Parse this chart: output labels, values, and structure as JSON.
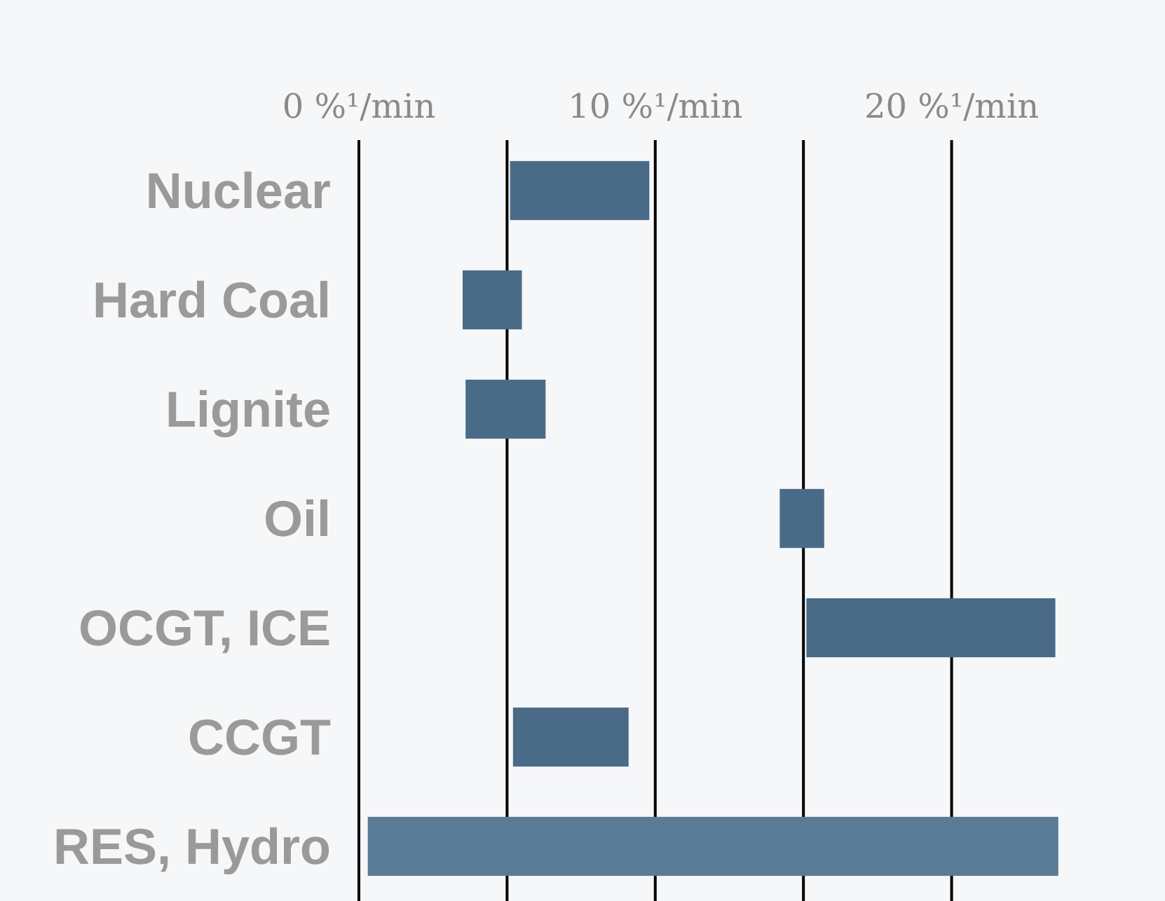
{
  "chart_data": {
    "type": "bar",
    "orientation": "horizontal",
    "categories": [
      "Nuclear",
      "Hard Coal",
      "Lignite",
      "Oil",
      "OCGT, ICE",
      "CCGT",
      "RES, Hydro"
    ],
    "base": [
      5.1,
      3.5,
      3.6,
      14.2,
      15.1,
      5.2,
      0.3
    ],
    "values": [
      4.7,
      2.0,
      2.7,
      1.5,
      8.4,
      3.9,
      23.3
    ],
    "colors": [
      "#4a6b88",
      "#4a6b88",
      "#4a6b88",
      "#4a6b88",
      "#4a6b88",
      "#4a6b88",
      "#5a7b96"
    ],
    "xlim": [
      0,
      27.2
    ],
    "xticks": [
      {
        "value": 0,
        "label": "0 %¹/min"
      },
      {
        "value": 5,
        "label": null
      },
      {
        "value": 10,
        "label": "10 %¹/min"
      },
      {
        "value": 15,
        "label": null
      },
      {
        "value": 20,
        "label": "20 %¹/min"
      }
    ],
    "grid": "x"
  }
}
